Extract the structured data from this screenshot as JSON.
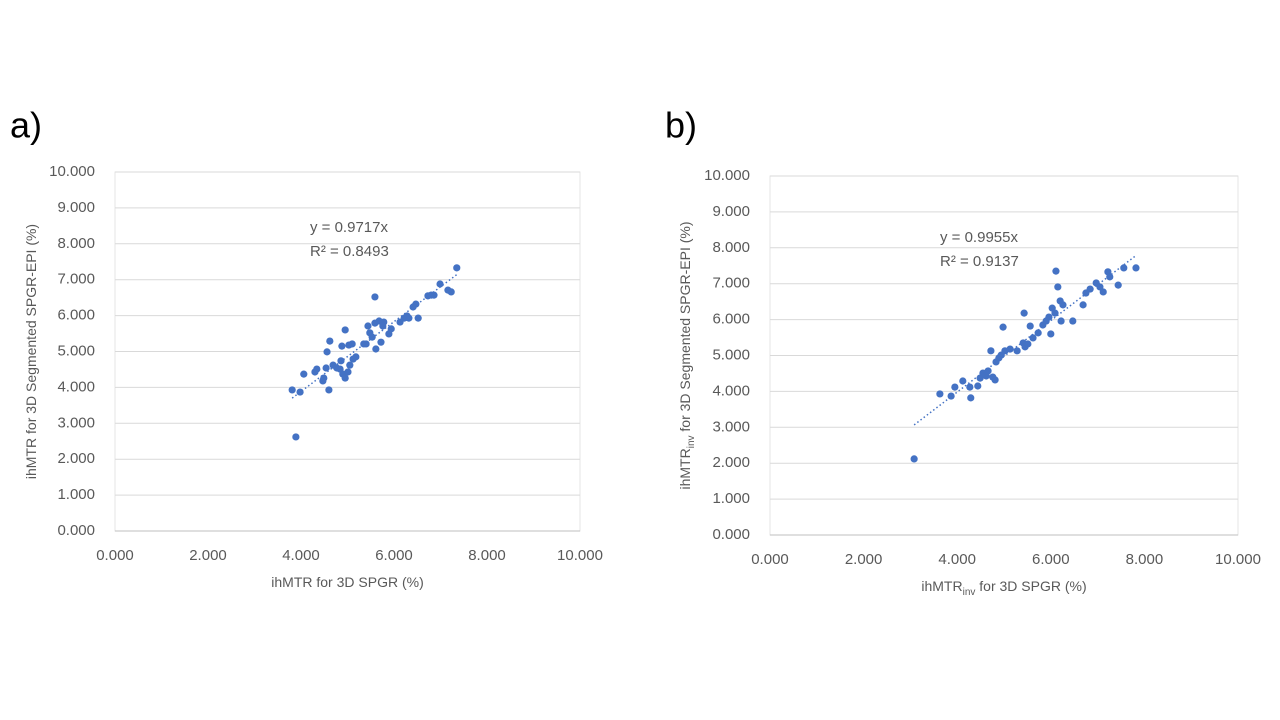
{
  "chart_data": [
    {
      "type": "scatter",
      "panel_label": "a)",
      "x_label": [
        "ihMTR for 3D SPGR (%)"
      ],
      "y_label": [
        "ihMTR for 3D Segmented SPGR-EPI (%)"
      ],
      "color": "#4472c4",
      "grid": true,
      "trendline": {
        "slope": 0.9717,
        "equation": "y = 0.9717x",
        "r_squared": "R² = 0.8493"
      },
      "xlim": [
        0,
        10
      ],
      "ylim": [
        0,
        10
      ],
      "xticks": [
        {
          "value": 0,
          "label": "0.000"
        },
        {
          "value": 2,
          "label": "2.000"
        },
        {
          "value": 4,
          "label": "4.000"
        },
        {
          "value": 6,
          "label": "6.000"
        },
        {
          "value": 8,
          "label": "8.000"
        },
        {
          "value": 10,
          "label": "10.000"
        }
      ],
      "yticks": [
        {
          "value": 0,
          "label": "0.000"
        },
        {
          "value": 1,
          "label": "1.000"
        },
        {
          "value": 2,
          "label": "2.000"
        },
        {
          "value": 3,
          "label": "3.000"
        },
        {
          "value": 4,
          "label": "4.000"
        },
        {
          "value": 5,
          "label": "5.000"
        },
        {
          "value": 6,
          "label": "6.000"
        },
        {
          "value": 7,
          "label": "7.000"
        },
        {
          "value": 8,
          "label": "8.000"
        },
        {
          "value": 9,
          "label": "9.000"
        },
        {
          "value": 10,
          "label": "10.000"
        }
      ],
      "x": [
        3.81,
        3.89,
        3.98,
        4.06,
        4.3,
        4.34,
        4.47,
        4.49,
        4.54,
        4.56,
        4.6,
        4.62,
        4.69,
        4.77,
        4.84,
        4.86,
        4.9,
        4.88,
        4.95,
        4.95,
        5.01,
        5.05,
        5.03,
        5.12,
        5.1,
        5.18,
        5.35,
        5.4,
        5.44,
        5.48,
        5.53,
        5.59,
        5.61,
        5.59,
        5.68,
        5.72,
        5.76,
        5.78,
        5.89,
        5.94,
        6.13,
        6.22,
        6.28,
        6.32,
        6.41,
        6.47,
        6.52,
        6.73,
        6.8,
        6.86,
        6.99,
        7.16,
        7.23,
        7.35
      ],
      "values": [
        3.93,
        2.62,
        3.87,
        4.37,
        4.43,
        4.51,
        4.18,
        4.26,
        4.54,
        4.99,
        3.93,
        5.29,
        4.62,
        4.54,
        4.51,
        4.74,
        4.37,
        5.15,
        4.26,
        5.6,
        4.43,
        4.62,
        5.18,
        4.79,
        5.21,
        4.85,
        5.21,
        5.21,
        5.71,
        5.52,
        5.4,
        5.79,
        5.07,
        6.52,
        5.85,
        5.26,
        5.71,
        5.82,
        5.49,
        5.63,
        5.82,
        5.93,
        5.99,
        5.93,
        6.24,
        6.32,
        5.93,
        6.55,
        6.57,
        6.57,
        6.88,
        6.71,
        6.66,
        7.33
      ]
    },
    {
      "type": "scatter",
      "panel_label": "b)",
      "x_label": [
        "ihMTR",
        "inv",
        " for 3D SPGR (%)"
      ],
      "y_label": [
        "ihMTR",
        "inv",
        " for 3D Segmented SPGR-EPI  (%)"
      ],
      "color": "#4472c4",
      "grid": true,
      "trendline": {
        "slope": 0.9955,
        "equation": "y = 0.9955x",
        "r_squared": "R² = 0.9137"
      },
      "xlim": [
        0,
        10
      ],
      "ylim": [
        0,
        10
      ],
      "xticks": [
        {
          "value": 0,
          "label": "0.000"
        },
        {
          "value": 2,
          "label": "2.000"
        },
        {
          "value": 4,
          "label": "4.000"
        },
        {
          "value": 6,
          "label": "6.000"
        },
        {
          "value": 8,
          "label": "8.000"
        },
        {
          "value": 10,
          "label": "10.000"
        }
      ],
      "yticks": [
        {
          "value": 0,
          "label": "0.000"
        },
        {
          "value": 1,
          "label": "1.000"
        },
        {
          "value": 2,
          "label": "2.000"
        },
        {
          "value": 3,
          "label": "3.000"
        },
        {
          "value": 4,
          "label": "4.000"
        },
        {
          "value": 5,
          "label": "5.000"
        },
        {
          "value": 6,
          "label": "6.000"
        },
        {
          "value": 7,
          "label": "7.000"
        },
        {
          "value": 8,
          "label": "8.000"
        },
        {
          "value": 9,
          "label": "9.000"
        },
        {
          "value": 10,
          "label": "10.000"
        }
      ],
      "x": [
        3.08,
        3.63,
        3.87,
        3.95,
        4.12,
        4.27,
        4.29,
        4.44,
        4.49,
        4.55,
        4.62,
        4.66,
        4.72,
        4.76,
        4.81,
        4.83,
        4.89,
        4.94,
        4.98,
        5.02,
        5.13,
        5.28,
        5.41,
        5.45,
        5.43,
        5.51,
        5.56,
        5.62,
        5.73,
        5.83,
        5.9,
        5.96,
        6.0,
        6.03,
        6.09,
        6.11,
        6.15,
        6.2,
        6.22,
        6.26,
        6.47,
        6.69,
        6.75,
        6.84,
        6.97,
        7.05,
        7.12,
        7.22,
        7.26,
        7.44,
        7.56,
        7.82
      ],
      "values": [
        2.12,
        3.93,
        3.87,
        4.12,
        4.29,
        4.12,
        3.82,
        4.15,
        4.37,
        4.51,
        4.43,
        4.57,
        5.13,
        4.4,
        4.32,
        4.82,
        4.93,
        5.01,
        5.79,
        5.13,
        5.18,
        5.13,
        5.35,
        5.24,
        6.18,
        5.32,
        5.82,
        5.49,
        5.63,
        5.85,
        5.96,
        6.07,
        5.6,
        6.32,
        6.18,
        7.35,
        6.91,
        6.52,
        5.96,
        6.41,
        5.96,
        6.41,
        6.74,
        6.85,
        7.02,
        6.91,
        6.77,
        7.33,
        7.19,
        6.96,
        7.44,
        7.44
      ]
    }
  ]
}
